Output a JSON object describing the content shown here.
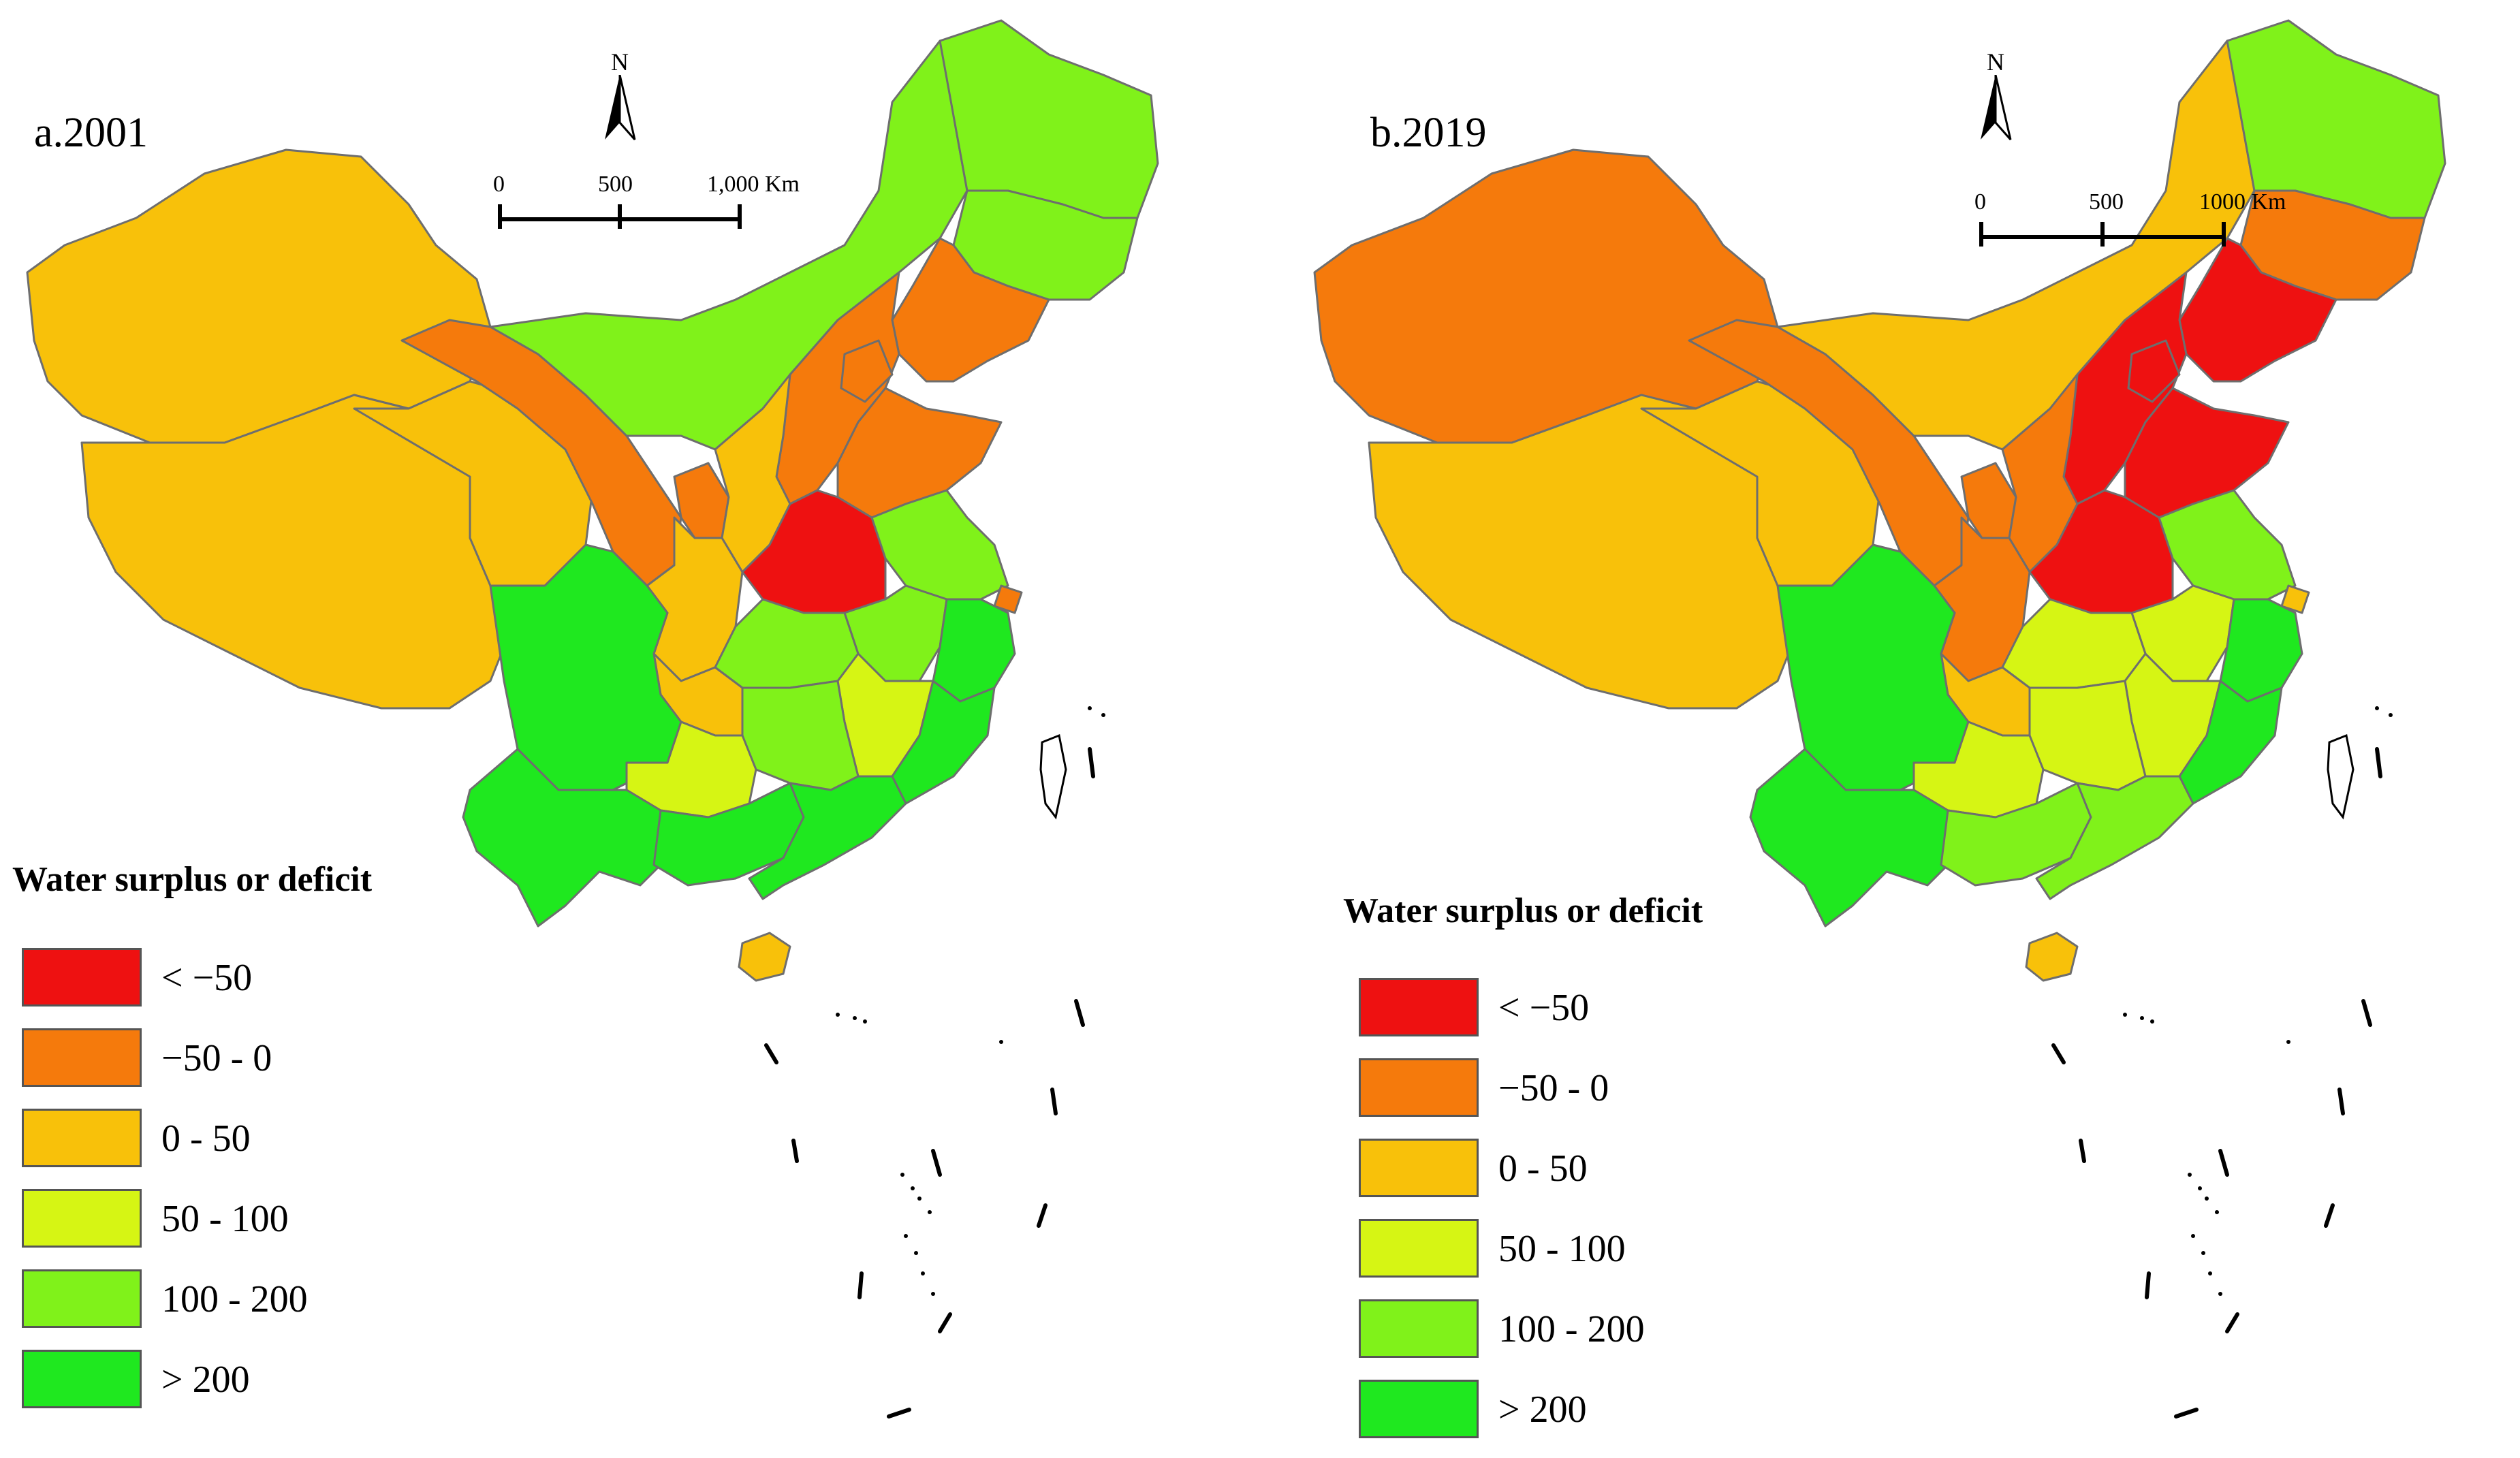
{
  "colors": {
    "lt_neg50": "#ee1111",
    "neg50_0": "#f57a0c",
    "r0_50": "#f8c10a",
    "r50_100": "#d6f514",
    "r100_200": "#80f21a",
    "gt200": "#1fe81f"
  },
  "legend": {
    "title": "Water surplus or deficit",
    "items": [
      {
        "label": "< −50",
        "color_key": "lt_neg50"
      },
      {
        "label": " −50 - 0",
        "color_key": "neg50_0"
      },
      {
        "label": "0 - 50",
        "color_key": "r0_50"
      },
      {
        "label": "50 - 100",
        "color_key": "r50_100"
      },
      {
        "label": "100 - 200",
        "color_key": "r100_200"
      },
      {
        "label": "> 200",
        "color_key": "gt200"
      }
    ]
  },
  "panels": [
    {
      "title": "a.2001",
      "north_label": "N",
      "scale": {
        "ticks": [
          "0",
          "500",
          "1,000 Km"
        ]
      },
      "regions": {
        "xinjiang": "r0_50",
        "tibet": "r0_50",
        "qinghai": "r0_50",
        "gansu": "neg50_0",
        "ningxia": "neg50_0",
        "inner_mongolia": "r100_200",
        "heilongjiang": "r100_200",
        "jilin": "r100_200",
        "liaoning": "neg50_0",
        "hebei": "neg50_0",
        "beijing_tianjin": "neg50_0",
        "shanxi": "r0_50",
        "shaanxi": "r0_50",
        "shandong": "neg50_0",
        "henan": "lt_neg50",
        "jiangsu": "r100_200",
        "anhui": "r100_200",
        "hubei": "r100_200",
        "sichuan": "gt200",
        "chongqing": "r0_50",
        "guizhou": "r50_100",
        "hunan": "r100_200",
        "jiangxi": "r50_100",
        "zhejiang": "gt200",
        "fujian": "gt200",
        "yunnan": "gt200",
        "guangxi": "gt200",
        "guangdong": "gt200",
        "hainan": "r0_50",
        "shanghai": "neg50_0"
      }
    },
    {
      "title": "b.2019",
      "north_label": "N",
      "scale": {
        "ticks": [
          "0",
          "500",
          "1000 Km"
        ]
      },
      "regions": {
        "xinjiang": "neg50_0",
        "tibet": "r0_50",
        "qinghai": "r0_50",
        "gansu": "neg50_0",
        "ningxia": "neg50_0",
        "inner_mongolia": "r0_50",
        "heilongjiang": "r100_200",
        "jilin": "neg50_0",
        "liaoning": "lt_neg50",
        "hebei": "lt_neg50",
        "beijing_tianjin": "lt_neg50",
        "shanxi": "neg50_0",
        "shaanxi": "neg50_0",
        "shandong": "lt_neg50",
        "henan": "lt_neg50",
        "jiangsu": "r100_200",
        "anhui": "r50_100",
        "hubei": "r50_100",
        "sichuan": "gt200",
        "chongqing": "r0_50",
        "guizhou": "r50_100",
        "hunan": "r50_100",
        "jiangxi": "r50_100",
        "zhejiang": "gt200",
        "fujian": "gt200",
        "yunnan": "gt200",
        "guangxi": "r100_200",
        "guangdong": "r100_200",
        "hainan": "r0_50",
        "shanghai": "r0_50"
      }
    }
  ]
}
